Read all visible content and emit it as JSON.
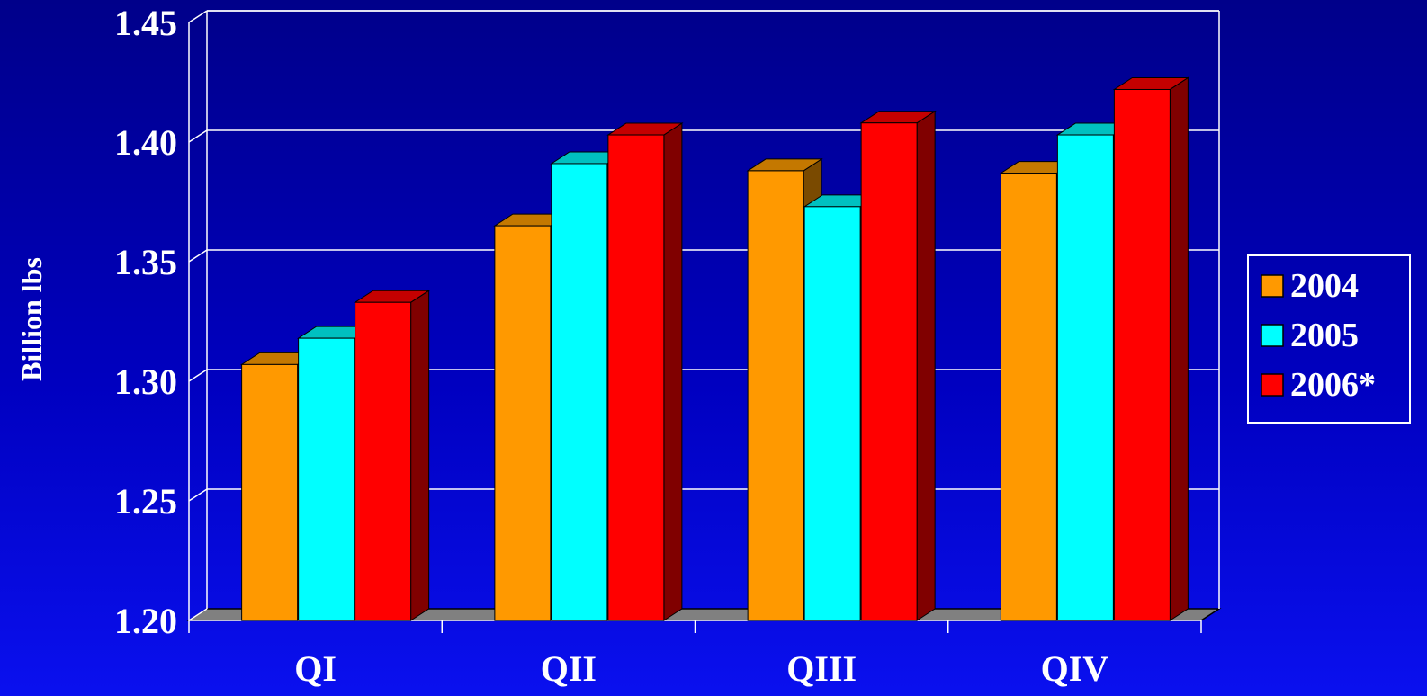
{
  "chart_data": {
    "type": "bar",
    "categories": [
      "QI",
      "QII",
      "QIII",
      "QIV"
    ],
    "series": [
      {
        "name": "2004",
        "values": [
          1.307,
          1.365,
          1.388,
          1.387
        ],
        "color": "#ff9900",
        "top_color": "#c47800",
        "side_color": "#7a4a00"
      },
      {
        "name": "2005",
        "values": [
          1.318,
          1.391,
          1.373,
          1.403
        ],
        "color": "#00ffff",
        "top_color": "#00c0c0",
        "side_color": "#008080"
      },
      {
        "name": "2006*",
        "values": [
          1.333,
          1.403,
          1.408,
          1.422
        ],
        "color": "#ff0000",
        "top_color": "#c40000",
        "side_color": "#800000"
      }
    ],
    "yticks": [
      "1.20",
      "1.25",
      "1.30",
      "1.35",
      "1.40",
      "1.45"
    ],
    "ylim": [
      1.2,
      1.45
    ],
    "ylabel": "Billion lbs",
    "xlabel": "",
    "title": "",
    "grid": true,
    "legend_position": "right",
    "background_color": "#0000b4",
    "grid_color": "#ffffff",
    "floor_color": "#808080"
  }
}
